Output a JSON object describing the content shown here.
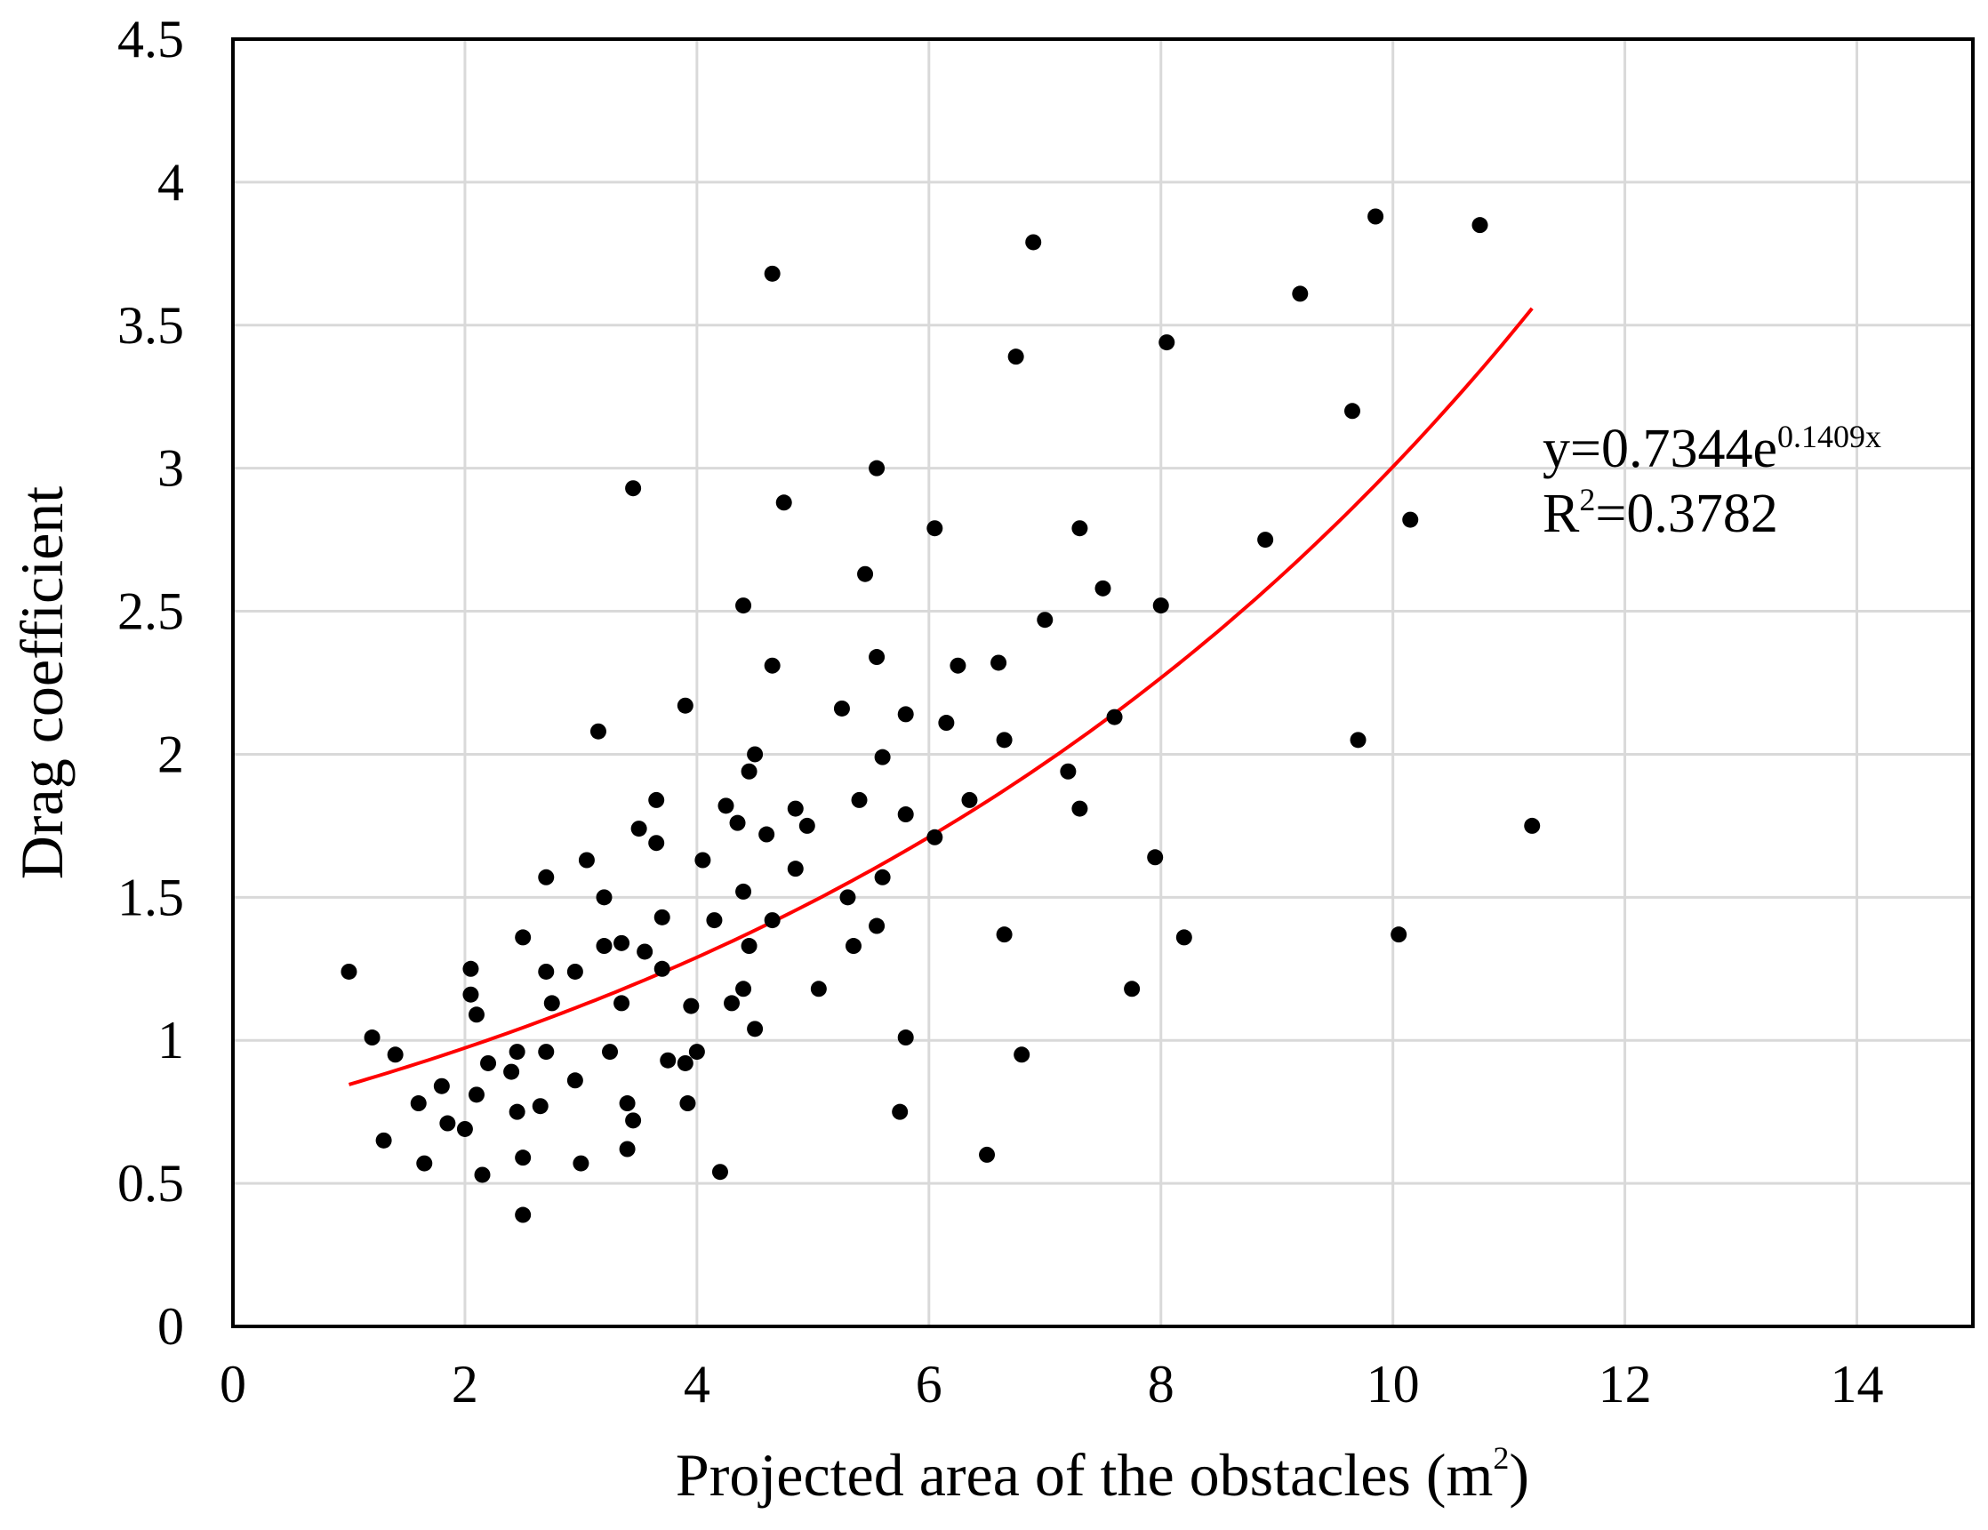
{
  "chart_data": {
    "type": "scatter",
    "title": "",
    "xlabel": "Projected area of the obstacles (m",
    "xlabel_sup": "2",
    "xlabel_suffix": ")",
    "ylabel": "Drag coefficient",
    "xlim": [
      0,
      15
    ],
    "ylim": [
      0,
      4.5
    ],
    "x_ticks": [
      0,
      2,
      4,
      6,
      8,
      10,
      12,
      14
    ],
    "y_ticks": [
      0,
      0.5,
      1,
      1.5,
      2,
      2.5,
      3,
      3.5,
      4,
      4.5
    ],
    "x_tick_labels": [
      "0",
      "2",
      "4",
      "6",
      "8",
      "10",
      "12",
      "14"
    ],
    "y_tick_labels": [
      "0",
      "0.5",
      "1",
      "1.5",
      "2",
      "2.5",
      "3",
      "3.5",
      "4",
      "4.5"
    ],
    "grid": true,
    "point_color": "#000000",
    "fit_color": "#ff0000",
    "fit": {
      "type": "exponential",
      "a": 0.7344,
      "b": 0.1409,
      "x_range": [
        1.0,
        11.2
      ],
      "equation_prefix": "y=0.7344e",
      "equation_exponent": "0.1409x",
      "r2_prefix": "R",
      "r2_sup": "2",
      "r2_suffix": "=0.3782"
    },
    "points": [
      [
        1.0,
        1.24
      ],
      [
        1.2,
        1.01
      ],
      [
        1.3,
        0.65
      ],
      [
        1.4,
        0.95
      ],
      [
        1.6,
        0.78
      ],
      [
        1.65,
        0.57
      ],
      [
        1.8,
        0.84
      ],
      [
        1.85,
        0.71
      ],
      [
        2.0,
        0.69
      ],
      [
        2.05,
        1.25
      ],
      [
        2.05,
        1.16
      ],
      [
        2.1,
        1.09
      ],
      [
        2.1,
        0.81
      ],
      [
        2.15,
        0.53
      ],
      [
        2.2,
        0.92
      ],
      [
        2.4,
        0.89
      ],
      [
        2.45,
        0.96
      ],
      [
        2.45,
        0.75
      ],
      [
        2.5,
        1.36
      ],
      [
        2.5,
        0.59
      ],
      [
        2.5,
        0.39
      ],
      [
        2.65,
        0.77
      ],
      [
        2.7,
        1.57
      ],
      [
        2.7,
        1.24
      ],
      [
        2.7,
        0.96
      ],
      [
        2.75,
        1.13
      ],
      [
        2.95,
        1.24
      ],
      [
        2.95,
        0.86
      ],
      [
        3.0,
        0.57
      ],
      [
        3.05,
        1.63
      ],
      [
        3.15,
        2.08
      ],
      [
        3.2,
        1.5
      ],
      [
        3.2,
        1.33
      ],
      [
        3.25,
        0.96
      ],
      [
        3.35,
        1.34
      ],
      [
        3.35,
        1.13
      ],
      [
        3.4,
        0.78
      ],
      [
        3.4,
        0.62
      ],
      [
        3.45,
        2.93
      ],
      [
        3.45,
        0.72
      ],
      [
        3.5,
        1.74
      ],
      [
        3.55,
        1.31
      ],
      [
        3.65,
        1.84
      ],
      [
        3.65,
        1.69
      ],
      [
        3.7,
        1.43
      ],
      [
        3.7,
        1.25
      ],
      [
        3.75,
        0.93
      ],
      [
        3.9,
        2.17
      ],
      [
        3.9,
        0.92
      ],
      [
        3.92,
        0.78
      ],
      [
        3.95,
        1.12
      ],
      [
        4.0,
        0.96
      ],
      [
        4.05,
        1.63
      ],
      [
        4.15,
        1.42
      ],
      [
        4.2,
        0.54
      ],
      [
        4.25,
        1.82
      ],
      [
        4.3,
        1.13
      ],
      [
        4.35,
        1.76
      ],
      [
        4.4,
        1.52
      ],
      [
        4.4,
        2.52
      ],
      [
        4.4,
        1.18
      ],
      [
        4.45,
        1.94
      ],
      [
        4.45,
        1.33
      ],
      [
        4.5,
        2.0
      ],
      [
        4.5,
        1.04
      ],
      [
        4.6,
        1.72
      ],
      [
        4.65,
        3.68
      ],
      [
        4.65,
        2.31
      ],
      [
        4.65,
        1.42
      ],
      [
        4.75,
        2.88
      ],
      [
        4.85,
        1.81
      ],
      [
        4.85,
        1.6
      ],
      [
        4.95,
        1.75
      ],
      [
        5.05,
        1.18
      ],
      [
        5.25,
        2.16
      ],
      [
        5.3,
        1.5
      ],
      [
        5.35,
        1.33
      ],
      [
        5.4,
        1.84
      ],
      [
        5.45,
        2.63
      ],
      [
        5.55,
        3.0
      ],
      [
        5.55,
        2.34
      ],
      [
        5.55,
        1.4
      ],
      [
        5.6,
        1.99
      ],
      [
        5.6,
        1.57
      ],
      [
        5.75,
        0.75
      ],
      [
        5.8,
        2.14
      ],
      [
        5.8,
        1.79
      ],
      [
        5.8,
        1.01
      ],
      [
        6.05,
        2.79
      ],
      [
        6.05,
        1.71
      ],
      [
        6.15,
        2.11
      ],
      [
        6.25,
        2.31
      ],
      [
        6.35,
        1.84
      ],
      [
        6.5,
        0.6
      ],
      [
        6.6,
        2.32
      ],
      [
        6.65,
        2.05
      ],
      [
        6.65,
        1.37
      ],
      [
        6.75,
        3.39
      ],
      [
        6.8,
        0.95
      ],
      [
        6.9,
        3.79
      ],
      [
        7.0,
        2.47
      ],
      [
        7.2,
        1.94
      ],
      [
        7.3,
        2.79
      ],
      [
        7.3,
        1.81
      ],
      [
        7.5,
        2.58
      ],
      [
        7.6,
        2.13
      ],
      [
        7.75,
        1.18
      ],
      [
        7.95,
        1.64
      ],
      [
        8.0,
        2.52
      ],
      [
        8.05,
        3.44
      ],
      [
        8.2,
        1.36
      ],
      [
        8.9,
        2.75
      ],
      [
        9.2,
        3.61
      ],
      [
        9.65,
        3.2
      ],
      [
        9.7,
        2.05
      ],
      [
        9.85,
        3.88
      ],
      [
        10.05,
        1.37
      ],
      [
        10.15,
        2.82
      ],
      [
        10.75,
        3.85
      ],
      [
        11.2,
        1.75
      ]
    ]
  }
}
